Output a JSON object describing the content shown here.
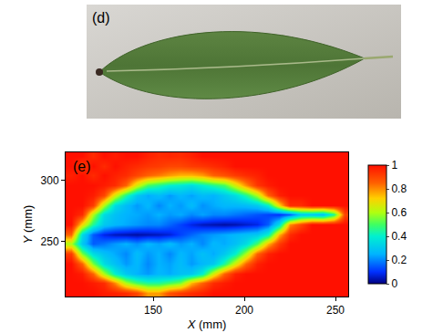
{
  "photo": {
    "label": "(d)"
  },
  "chart_data": {
    "type": "heatmap",
    "annotations": [
      "(e)"
    ],
    "xlabel": "X (mm)",
    "ylabel": "Y (mm)",
    "xlim": [
      102,
      257
    ],
    "xticks": [
      150,
      200,
      250
    ],
    "ylim": [
      205,
      323
    ],
    "yticks": [
      250,
      300
    ],
    "colorbar_range": [
      0,
      1
    ],
    "colorbar_ticks": [
      0,
      0.2,
      0.4,
      0.6,
      0.8,
      1
    ],
    "x": [
      105,
      111,
      117,
      123,
      129,
      135,
      141,
      147,
      153,
      159,
      165,
      171,
      177,
      183,
      189,
      195,
      201,
      207,
      213,
      219,
      225,
      231,
      237,
      243,
      249,
      255
    ],
    "y": [
      208,
      216,
      224,
      232,
      240,
      248,
      256,
      264,
      272,
      280,
      288,
      296,
      304,
      312,
      320
    ],
    "cells": [
      [
        1,
        1,
        1,
        0.98,
        0.97,
        0.95,
        0.9,
        0.78,
        0.78,
        0.88,
        0.92,
        0.95,
        0.97,
        1,
        1,
        1,
        1,
        1,
        1,
        1,
        1,
        1,
        1,
        1,
        1,
        1
      ],
      [
        1,
        1,
        0.98,
        0.95,
        0.8,
        0.6,
        0.5,
        0.45,
        0.45,
        0.5,
        0.55,
        0.75,
        0.85,
        0.95,
        0.98,
        1,
        1,
        1,
        1,
        1,
        1,
        1,
        1,
        1,
        1,
        1
      ],
      [
        1,
        0.98,
        0.85,
        0.6,
        0.4,
        0.3,
        0.25,
        0.22,
        0.26,
        0.24,
        0.28,
        0.3,
        0.4,
        0.65,
        0.85,
        0.97,
        1,
        1,
        1,
        1,
        1,
        1,
        1,
        1,
        1,
        1
      ],
      [
        1,
        0.85,
        0.55,
        0.35,
        0.28,
        0.22,
        0.26,
        0.2,
        0.25,
        0.23,
        0.27,
        0.22,
        0.26,
        0.3,
        0.45,
        0.65,
        0.85,
        0.97,
        1,
        1,
        1,
        1,
        1,
        1,
        1,
        1
      ],
      [
        0.92,
        0.55,
        0.35,
        0.28,
        0.24,
        0.2,
        0.27,
        0.22,
        0.25,
        0.2,
        0.26,
        0.23,
        0.28,
        0.24,
        0.3,
        0.4,
        0.6,
        0.85,
        0.97,
        1,
        1,
        1,
        1,
        1,
        1,
        1
      ],
      [
        0.6,
        0.3,
        0.15,
        0.18,
        0.22,
        0.25,
        0.21,
        0.26,
        0.23,
        0.27,
        0.22,
        0.25,
        0.2,
        0.26,
        0.24,
        0.28,
        0.35,
        0.5,
        0.75,
        0.92,
        1,
        1,
        1,
        1,
        1,
        1
      ],
      [
        0.85,
        0.35,
        0.15,
        0.08,
        0.05,
        0.04,
        0.03,
        0.04,
        0.05,
        0.07,
        0.12,
        0.16,
        0.2,
        0.22,
        0.24,
        0.26,
        0.28,
        0.3,
        0.4,
        0.75,
        0.95,
        1,
        1,
        1,
        1,
        1
      ],
      [
        1,
        0.7,
        0.45,
        0.3,
        0.26,
        0.24,
        0.22,
        0.2,
        0.2,
        0.16,
        0.12,
        0.08,
        0.05,
        0.04,
        0.03,
        0.04,
        0.06,
        0.08,
        0.15,
        0.35,
        0.8,
        0.9,
        1,
        1,
        1,
        1
      ],
      [
        1,
        0.95,
        0.6,
        0.35,
        0.28,
        0.25,
        0.24,
        0.22,
        0.25,
        0.22,
        0.24,
        0.2,
        0.23,
        0.2,
        0.2,
        0.18,
        0.16,
        0.14,
        0.12,
        0.1,
        0.15,
        0.3,
        0.3,
        0.28,
        0.45,
        0.9
      ],
      [
        1,
        1,
        0.92,
        0.6,
        0.35,
        0.27,
        0.22,
        0.26,
        0.2,
        0.25,
        0.22,
        0.27,
        0.21,
        0.24,
        0.26,
        0.26,
        0.27,
        0.3,
        0.4,
        0.7,
        0.95,
        0.95,
        1,
        1,
        1,
        1
      ],
      [
        1,
        1,
        0.98,
        0.9,
        0.65,
        0.45,
        0.3,
        0.24,
        0.27,
        0.22,
        0.26,
        0.23,
        0.27,
        0.25,
        0.3,
        0.35,
        0.45,
        0.6,
        0.85,
        0.97,
        1,
        1,
        1,
        1,
        1,
        1
      ],
      [
        1,
        1,
        1,
        0.98,
        0.95,
        0.85,
        0.65,
        0.5,
        0.45,
        0.4,
        0.38,
        0.35,
        0.4,
        0.45,
        0.5,
        0.65,
        0.8,
        0.93,
        0.98,
        1,
        1,
        1,
        1,
        1,
        1,
        1
      ],
      [
        0.97,
        1,
        0.95,
        1,
        0.97,
        0.95,
        0.9,
        0.85,
        0.82,
        0.78,
        0.75,
        0.75,
        0.78,
        0.85,
        0.88,
        0.92,
        0.95,
        0.97,
        1,
        1,
        1,
        1,
        1,
        1,
        1,
        1
      ],
      [
        1,
        0.92,
        1,
        0.95,
        1,
        0.97,
        0.95,
        0.93,
        0.92,
        0.9,
        0.9,
        0.92,
        0.93,
        0.95,
        0.97,
        1,
        1,
        1,
        1,
        1,
        1,
        1,
        1,
        1,
        1,
        1
      ],
      [
        1,
        1,
        0.95,
        1,
        0.98,
        1,
        1,
        0.97,
        0.95,
        0.96,
        0.95,
        0.97,
        1,
        1,
        1,
        1,
        1,
        1,
        1,
        1,
        1,
        1,
        1,
        1,
        1,
        1
      ]
    ]
  }
}
